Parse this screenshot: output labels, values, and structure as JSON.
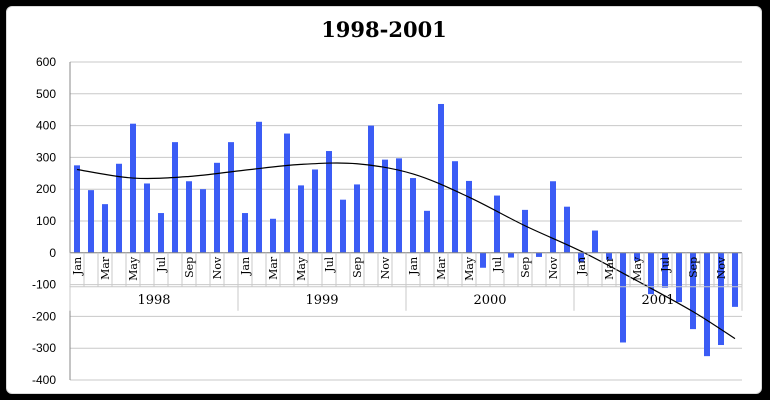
{
  "chart_data": {
    "type": "bar",
    "title": "1998-2001",
    "xlabel": "",
    "ylabel": "",
    "ylim": [
      -400,
      600
    ],
    "yticks": [
      600,
      500,
      400,
      300,
      200,
      100,
      0,
      -100,
      -200,
      -300,
      -400
    ],
    "grid": true,
    "legend": "none",
    "bar_color": "#3b5cf5",
    "trendline_color": "#000000",
    "years": [
      "1998",
      "1999",
      "2000",
      "2001"
    ],
    "month_labels": [
      "Jan",
      "Mar",
      "May",
      "Jul",
      "Sep",
      "Nov"
    ],
    "categories": [
      "Jan 1998",
      "Feb 1998",
      "Mar 1998",
      "Apr 1998",
      "May 1998",
      "Jun 1998",
      "Jul 1998",
      "Aug 1998",
      "Sep 1998",
      "Oct 1998",
      "Nov 1998",
      "Dec 1998",
      "Jan 1999",
      "Feb 1999",
      "Mar 1999",
      "Apr 1999",
      "May 1999",
      "Jun 1999",
      "Jul 1999",
      "Aug 1999",
      "Sep 1999",
      "Oct 1999",
      "Nov 1999",
      "Dec 1999",
      "Jan 2000",
      "Feb 2000",
      "Mar 2000",
      "Apr 2000",
      "May 2000",
      "Jun 2000",
      "Jul 2000",
      "Aug 2000",
      "Sep 2000",
      "Oct 2000",
      "Nov 2000",
      "Dec 2000",
      "Jan 2001",
      "Feb 2001",
      "Mar 2001",
      "Apr 2001",
      "May 2001",
      "Jun 2001",
      "Jul 2001",
      "Aug 2001",
      "Sep 2001",
      "Oct 2001",
      "Nov 2001",
      "Dec 2001"
    ],
    "values": [
      275,
      197,
      153,
      280,
      406,
      218,
      125,
      348,
      225,
      200,
      283,
      348,
      125,
      412,
      107,
      375,
      212,
      262,
      320,
      167,
      215,
      400,
      293,
      297,
      235,
      132,
      468,
      288,
      226,
      -47,
      180,
      -15,
      135,
      -13,
      225,
      145,
      -28,
      70,
      -22,
      -282,
      -25,
      -130,
      -110,
      -155,
      -240,
      -325,
      -290,
      -170
    ],
    "trendline": {
      "x": [
        0,
        4,
        8,
        12,
        16,
        20,
        24,
        28,
        32,
        36,
        40,
        44,
        47
      ],
      "y": [
        262,
        235,
        240,
        260,
        278,
        280,
        248,
        175,
        85,
        5,
        -88,
        -185,
        -270
      ]
    }
  }
}
